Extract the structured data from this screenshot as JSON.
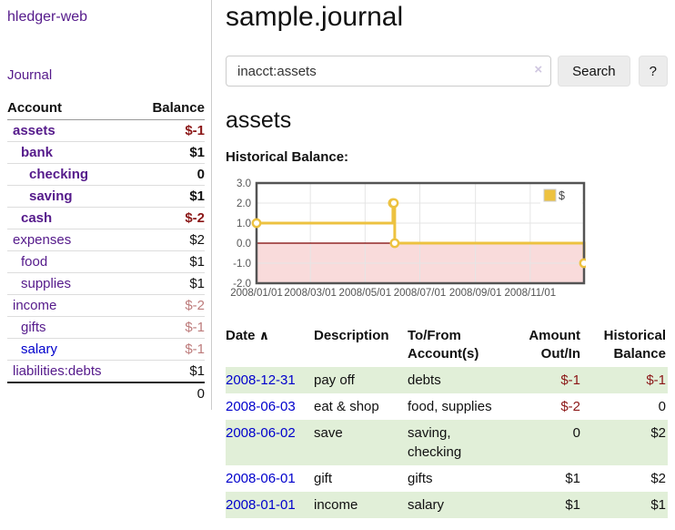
{
  "app": {
    "brand": "hledger-web",
    "journal_link": "Journal"
  },
  "palette": {
    "link_purple": "#551a8b",
    "link_blue": "#0000cc",
    "negative_strong": "#8b1717",
    "negative_dim": "#bd7b7b",
    "row_stripe_green": "#e1efd8",
    "series_yellow": "#edc240"
  },
  "sidebar": {
    "headers": {
      "account": "Account",
      "balance": "Balance"
    },
    "rows": [
      {
        "account": "assets",
        "balance": "$-1",
        "depth": 1,
        "bold": true,
        "link": "purple",
        "style": "neg"
      },
      {
        "account": "bank",
        "balance": "$1",
        "depth": 2,
        "bold": true,
        "link": "purple",
        "style": ""
      },
      {
        "account": "checking",
        "balance": "0",
        "depth": 3,
        "bold": true,
        "link": "purple",
        "style": ""
      },
      {
        "account": "saving",
        "balance": "$1",
        "depth": 3,
        "bold": true,
        "link": "purple",
        "style": ""
      },
      {
        "account": "cash",
        "balance": "$-2",
        "depth": 2,
        "bold": true,
        "link": "purple",
        "style": "neg"
      },
      {
        "account": "expenses",
        "balance": "$2",
        "depth": 1,
        "bold": false,
        "link": "purple",
        "style": ""
      },
      {
        "account": "food",
        "balance": "$1",
        "depth": 2,
        "bold": false,
        "link": "purple",
        "style": ""
      },
      {
        "account": "supplies",
        "balance": "$1",
        "depth": 2,
        "bold": false,
        "link": "purple",
        "style": ""
      },
      {
        "account": "income",
        "balance": "$-2",
        "depth": 1,
        "bold": false,
        "link": "purple",
        "style": "dim"
      },
      {
        "account": "gifts",
        "balance": "$-1",
        "depth": 2,
        "bold": false,
        "link": "purple",
        "style": "dim"
      },
      {
        "account": "salary",
        "balance": "$-1",
        "depth": 2,
        "bold": false,
        "link": "blue",
        "style": "dim"
      },
      {
        "account": "liabilities:debts",
        "balance": "$1",
        "depth": 1,
        "bold": false,
        "link": "purple",
        "style": ""
      }
    ],
    "total": "0"
  },
  "main": {
    "title": "sample.journal",
    "search": {
      "value": "inacct:assets",
      "clear_icon": "×",
      "button_label": "Search",
      "help_label": "?"
    },
    "account_heading": "assets",
    "chart_label": "Historical Balance:"
  },
  "chart_data": {
    "type": "line",
    "step": true,
    "title": "Historical Balance:",
    "series": [
      {
        "name": "$",
        "color": "#edc240",
        "points": [
          [
            "2008-01-01",
            1
          ],
          [
            "2008-06-01",
            2
          ],
          [
            "2008-06-02",
            2
          ],
          [
            "2008-06-03",
            0
          ],
          [
            "2008-12-31",
            -1
          ]
        ]
      }
    ],
    "xlim": [
      "2008-01-01",
      "2008-12-31"
    ],
    "ylim": [
      -2,
      3
    ],
    "y_ticks": [
      "3.0",
      "2.0",
      "1.0",
      "0.0",
      "-1.0",
      "-2.0"
    ],
    "x_ticks": [
      "2008/01/01",
      "2008/03/01",
      "2008/05/01",
      "2008/07/01",
      "2008/09/01",
      "2008/11/01"
    ],
    "grid": true,
    "negative_region_color": "#f9dbdb",
    "zero_line_color": "#7d0000",
    "border_color": "#545454",
    "grid_color": "#e5e5e5",
    "tick_text_color": "#545454",
    "legend": {
      "label": "$",
      "position": "top-right"
    }
  },
  "register": {
    "headers": {
      "date": "Date",
      "date_caret": "∧",
      "description": "Description",
      "accounts": "To/From Account(s)",
      "amount": "Amount Out/In",
      "balance": "Historical Balance"
    },
    "rows": [
      {
        "date": "2008-12-31",
        "description": "pay off",
        "accounts": "debts",
        "amount": "$-1",
        "amount_neg": true,
        "balance": "$-1",
        "balance_neg": true
      },
      {
        "date": "2008-06-03",
        "description": "eat & shop",
        "accounts": "food, supplies",
        "amount": "$-2",
        "amount_neg": true,
        "balance": "0",
        "balance_neg": false
      },
      {
        "date": "2008-06-02",
        "description": "save",
        "accounts": "saving, checking",
        "amount": "0",
        "amount_neg": false,
        "balance": "$2",
        "balance_neg": false
      },
      {
        "date": "2008-06-01",
        "description": "gift",
        "accounts": "gifts",
        "amount": "$1",
        "amount_neg": false,
        "balance": "$2",
        "balance_neg": false
      },
      {
        "date": "2008-01-01",
        "description": "income",
        "accounts": "salary",
        "amount": "$1",
        "amount_neg": false,
        "balance": "$1",
        "balance_neg": false
      }
    ]
  }
}
